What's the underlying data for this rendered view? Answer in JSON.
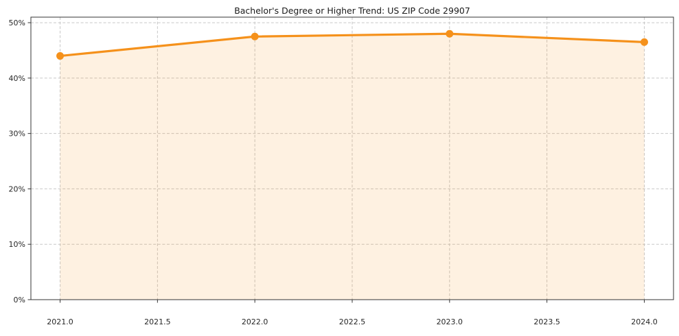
{
  "page": {
    "background_color": "#ffffff"
  },
  "chart_data": {
    "type": "area",
    "title": "Bachelor's Degree or Higher Trend: US ZIP Code 29907",
    "x": [
      2021.0,
      2022.0,
      2023.0,
      2024.0
    ],
    "values": [
      44.0,
      47.5,
      48.0,
      46.5
    ],
    "xlabel": "",
    "ylabel": "",
    "xlim": [
      2020.85,
      2024.15
    ],
    "ylim": [
      0,
      50
    ],
    "x_ticks": [
      2021.0,
      2021.5,
      2022.0,
      2022.5,
      2023.0,
      2023.5,
      2024.0
    ],
    "x_tick_labels": [
      "2021.0",
      "2021.5",
      "2022.0",
      "2022.5",
      "2023.0",
      "2023.5",
      "2024.0"
    ],
    "y_ticks": [
      0,
      10,
      20,
      30,
      40,
      50
    ],
    "y_tick_labels": [
      "0%",
      "10%",
      "20%",
      "30%",
      "40%",
      "50%"
    ],
    "grid": true,
    "grid_style": "dashed",
    "legend": false,
    "line_color": "#f5911b",
    "marker_color": "#f5911b",
    "marker_shape": "circle",
    "fill_color": "#fdf2e3",
    "fill_opacity": 0.13,
    "grid_color": "#c7c7c7",
    "spine_color": "#333333",
    "tick_label_color": "#262626"
  }
}
